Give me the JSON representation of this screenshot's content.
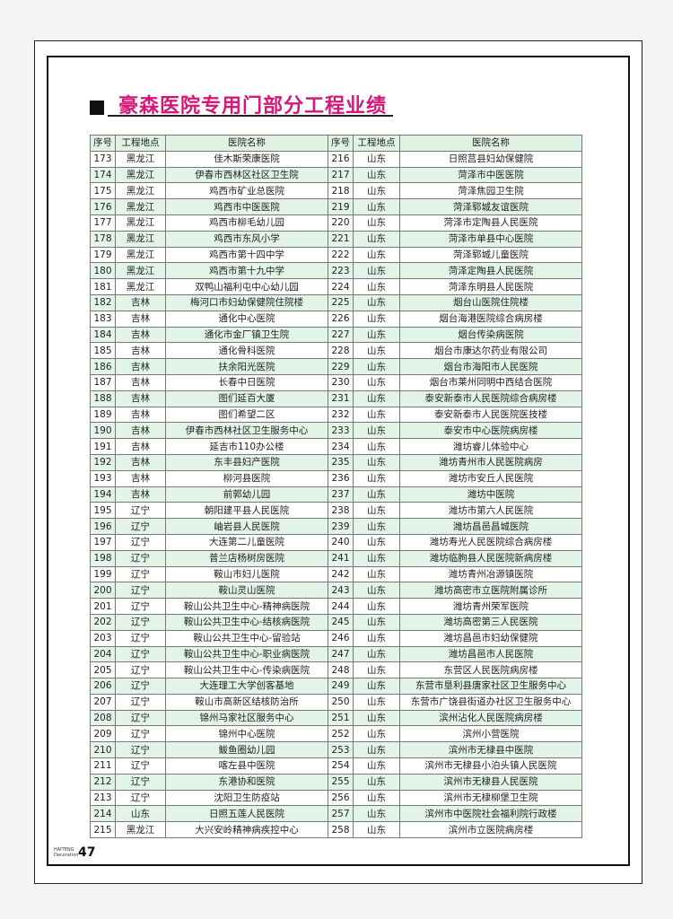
{
  "title": "豪森医院专用门部分工程业绩",
  "headers": [
    "序号",
    "工程地点",
    "医院名称",
    "序号",
    "工程地点",
    "医院名称"
  ],
  "rows": [
    [
      "173",
      "黑龙江",
      "佳木斯荣康医院",
      "216",
      "山东",
      "日照莒县妇幼保健院"
    ],
    [
      "174",
      "黑龙江",
      "伊春市西林区社区卫生院",
      "217",
      "山东",
      "菏泽市中医医院"
    ],
    [
      "175",
      "黑龙江",
      "鸡西市矿业总医院",
      "218",
      "山东",
      "菏泽焦园卫生院"
    ],
    [
      "176",
      "黑龙江",
      "鸡西市中医医院",
      "219",
      "山东",
      "菏泽郓城友谊医院"
    ],
    [
      "177",
      "黑龙江",
      "鸡西市柳毛幼儿园",
      "220",
      "山东",
      "菏泽市定陶县人民医院"
    ],
    [
      "178",
      "黑龙江",
      "鸡西市东风小学",
      "221",
      "山东",
      "菏泽市单县中心医院"
    ],
    [
      "179",
      "黑龙江",
      "鸡西市第十四中学",
      "222",
      "山东",
      "菏泽郓城儿童医院"
    ],
    [
      "180",
      "黑龙江",
      "鸡西市第十九中学",
      "223",
      "山东",
      "菏泽定陶县人民医院"
    ],
    [
      "181",
      "黑龙江",
      "双鸭山福利屯中心幼儿园",
      "224",
      "山东",
      "菏泽东明县人民医院"
    ],
    [
      "182",
      "吉林",
      "梅河口市妇幼保健院住院楼",
      "225",
      "山东",
      "烟台山医院住院楼"
    ],
    [
      "183",
      "吉林",
      "通化中心医院",
      "226",
      "山东",
      "烟台海港医院综合病房楼"
    ],
    [
      "184",
      "吉林",
      "通化市金厂镇卫生院",
      "227",
      "山东",
      "烟台传染病医院"
    ],
    [
      "185",
      "吉林",
      "通化骨科医院",
      "228",
      "山东",
      "烟台市康达尔药业有限公司"
    ],
    [
      "186",
      "吉林",
      "扶余阳光医院",
      "229",
      "山东",
      "烟台市海阳市人民医院"
    ],
    [
      "187",
      "吉林",
      "长春中日医院",
      "230",
      "山东",
      "烟台市莱州同明中西结合医院"
    ],
    [
      "188",
      "吉林",
      "图们延百大厦",
      "231",
      "山东",
      "泰安新泰市人民医院综合病房楼"
    ],
    [
      "189",
      "吉林",
      "图们希望二区",
      "232",
      "山东",
      "泰安新泰市人民医院医技楼"
    ],
    [
      "190",
      "吉林",
      "伊春市西林社区卫生服务中心",
      "233",
      "山东",
      "泰安市中心医院病房楼"
    ],
    [
      "191",
      "吉林",
      "延吉市110办公楼",
      "234",
      "山东",
      "潍坊睿儿体验中心"
    ],
    [
      "192",
      "吉林",
      "东丰县妇产医院",
      "235",
      "山东",
      "潍坊青州市人民医院病房"
    ],
    [
      "193",
      "吉林",
      "柳河县医院",
      "236",
      "山东",
      "潍坊市安丘人民医院"
    ],
    [
      "194",
      "吉林",
      "前郭幼儿园",
      "237",
      "山东",
      "潍坊中医院"
    ],
    [
      "195",
      "辽宁",
      "朝阳建平县人民医院",
      "238",
      "山东",
      "潍坊市第六人民医院"
    ],
    [
      "196",
      "辽宁",
      "岫岩县人民医院",
      "239",
      "山东",
      "潍坊昌邑昌城医院"
    ],
    [
      "197",
      "辽宁",
      "大连第二儿童医院",
      "240",
      "山东",
      "潍坊寿光人民医院综合病房楼"
    ],
    [
      "198",
      "辽宁",
      "普兰店杨树房医院",
      "241",
      "山东",
      "潍坊临朐县人民医院新病房楼"
    ],
    [
      "199",
      "辽宁",
      "鞍山市妇儿医院",
      "242",
      "山东",
      "潍坊青州冶源镇医院"
    ],
    [
      "200",
      "辽宁",
      "鞍山灵山医院",
      "243",
      "山东",
      "潍坊高密市立医院附属诊所"
    ],
    [
      "201",
      "辽宁",
      "鞍山公共卫生中心-精神病医院",
      "244",
      "山东",
      "潍坊青州荣军医院"
    ],
    [
      "202",
      "辽宁",
      "鞍山公共卫生中心-结核病医院",
      "245",
      "山东",
      "潍坊高密第三人民医院"
    ],
    [
      "203",
      "辽宁",
      "鞍山公共卫生中心-留验站",
      "246",
      "山东",
      "潍坊昌邑市妇幼保健院"
    ],
    [
      "204",
      "辽宁",
      "鞍山公共卫生中心-职业病医院",
      "247",
      "山东",
      "潍坊昌邑市人民医院"
    ],
    [
      "205",
      "辽宁",
      "鞍山公共卫生中心-传染病医院",
      "248",
      "山东",
      "东营区人民医院病房楼"
    ],
    [
      "206",
      "辽宁",
      "大连理工大学创客基地",
      "249",
      "山东",
      "东营市垦利县唐家社区卫生服务中心"
    ],
    [
      "207",
      "辽宁",
      "鞍山市高新区结核防治所",
      "250",
      "山东",
      "东营市广饶县街道办社区卫生服务中心"
    ],
    [
      "208",
      "辽宁",
      "锦州马家社区服务中心",
      "251",
      "山东",
      "滨州沾化人民医院病房楼"
    ],
    [
      "209",
      "辽宁",
      "锦州中心医院",
      "252",
      "山东",
      "滨州小营医院"
    ],
    [
      "210",
      "辽宁",
      "鲅鱼圈幼儿园",
      "253",
      "山东",
      "滨州市无棣县中医院"
    ],
    [
      "211",
      "辽宁",
      "喀左县中医院",
      "254",
      "山东",
      "滨州市无棣县小泊头镇人民医院"
    ],
    [
      "212",
      "辽宁",
      "东港协和医院",
      "255",
      "山东",
      "滨州市无棣县人民医院"
    ],
    [
      "213",
      "辽宁",
      "沈阳卫生防疫站",
      "256",
      "山东",
      "滨州市无棣柳堡卫生院"
    ],
    [
      "214",
      "山东",
      "日照五莲人民医院",
      "257",
      "山东",
      "滨州市中医院社会福利院行政楼"
    ],
    [
      "215",
      "黑龙江",
      "大兴安岭精神病疾控中心",
      "258",
      "山东",
      "滨州市立医院病房楼"
    ]
  ],
  "footer": {
    "brand_line1": "HAITENG",
    "brand_line2": "Decoration",
    "page_number": "47"
  },
  "colors": {
    "title": "#d6177a",
    "row_alt": "#e2f4e8",
    "header": "#dff2e4"
  }
}
